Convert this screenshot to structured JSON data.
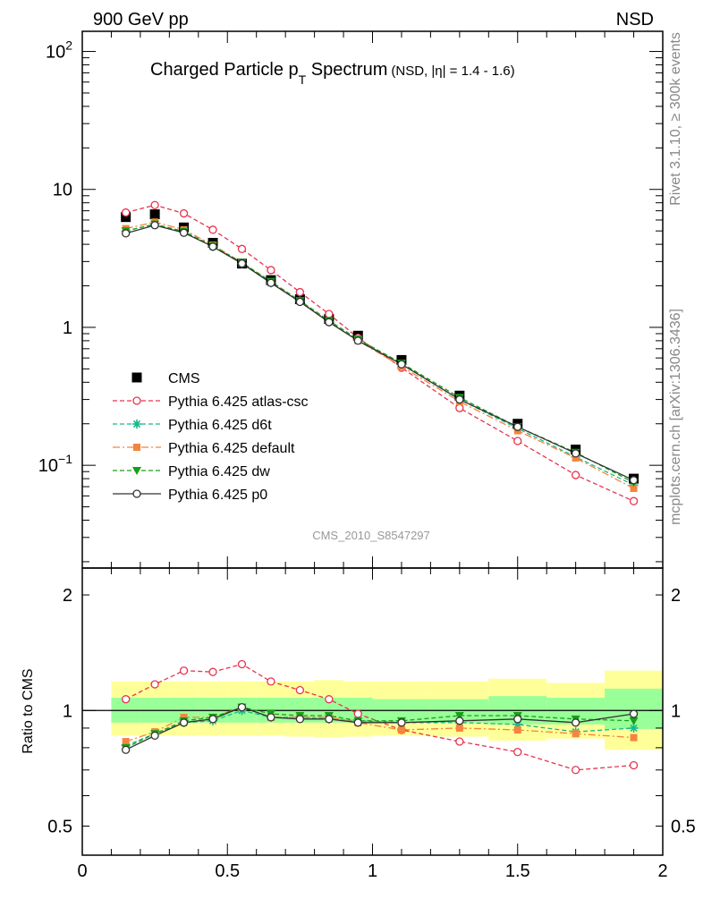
{
  "header": {
    "left": "900 GeV pp",
    "right": "NSD"
  },
  "side_labels": {
    "rivet": "Rivet 3.1.10, ≥ 300k events",
    "mcplots": "mcplots.cern.ch [arXiv:1306.3436]"
  },
  "analysis_id": "CMS_2010_S8547297",
  "colors": {
    "CMS": "#000000",
    "atlas": "#e8334f",
    "d6t": "#14b98a",
    "default": "#f5843c",
    "dw": "#16a016",
    "p0": "#333333",
    "band_outer": "#ffff99",
    "band_inner": "#99ff99"
  },
  "chart_data": [
    {
      "type": "line",
      "title": {
        "main": "Charged Particle p",
        "sub": "T",
        "main2": " Spectrum",
        "small": "(NSD, |η| = 1.4 - 1.6)"
      },
      "xlim": [
        0,
        2
      ],
      "ylim": [
        0.018,
        140
      ],
      "log_y": true,
      "yticks": [
        {
          "v": 0.1,
          "base": "10",
          "exp": "−1"
        },
        {
          "v": 1,
          "label": "1"
        },
        {
          "v": 10,
          "label": "10"
        },
        {
          "v": 100,
          "base": "10",
          "exp": "2"
        }
      ],
      "x": [
        0.15,
        0.25,
        0.35,
        0.45,
        0.55,
        0.65,
        0.75,
        0.85,
        0.95,
        1.1,
        1.3,
        1.5,
        1.7,
        1.9
      ],
      "series": [
        {
          "name": "CMS",
          "key": "CMS",
          "marker": "square",
          "dash": "",
          "values": [
            6.3,
            6.6,
            5.3,
            4.1,
            2.9,
            2.2,
            1.6,
            1.15,
            0.87,
            0.58,
            0.32,
            0.2,
            0.13,
            0.08
          ]
        },
        {
          "name": "Pythia 6.425 atlas-csc",
          "key": "atlas",
          "marker": "circle-open",
          "dash": "5,3",
          "values": [
            6.8,
            7.7,
            6.7,
            5.1,
            3.7,
            2.6,
            1.8,
            1.25,
            0.84,
            0.51,
            0.26,
            0.15,
            0.085,
            0.055
          ]
        },
        {
          "name": "Pythia 6.425 d6t",
          "key": "d6t",
          "marker": "star",
          "dash": "5,3",
          "values": [
            5.0,
            5.6,
            4.9,
            3.85,
            2.9,
            2.1,
            1.55,
            1.1,
            0.81,
            0.54,
            0.3,
            0.185,
            0.115,
            0.072
          ]
        },
        {
          "name": "Pythia 6.425 default",
          "key": "default",
          "marker": "square-small",
          "dash": "8,3,2,3",
          "values": [
            5.2,
            5.8,
            5.1,
            3.95,
            2.95,
            2.12,
            1.55,
            1.1,
            0.8,
            0.52,
            0.29,
            0.178,
            0.113,
            0.068
          ]
        },
        {
          "name": "Pythia 6.425 dw",
          "key": "dw",
          "marker": "triangle-down",
          "dash": "5,3",
          "values": [
            5.0,
            5.6,
            4.95,
            3.9,
            2.95,
            2.15,
            1.56,
            1.12,
            0.82,
            0.55,
            0.31,
            0.19,
            0.124,
            0.075
          ]
        },
        {
          "name": "Pythia 6.425 p0",
          "key": "p0",
          "marker": "circle-open",
          "dash": "",
          "values": [
            4.8,
            5.5,
            4.85,
            3.85,
            2.9,
            2.1,
            1.53,
            1.09,
            0.8,
            0.54,
            0.3,
            0.19,
            0.122,
            0.078
          ]
        }
      ],
      "legend_placement": "left"
    },
    {
      "type": "line",
      "ylabel": "Ratio to CMS",
      "xlim": [
        0,
        2
      ],
      "ylim": [
        0.42,
        2.35
      ],
      "log_y": true,
      "yticks": [
        {
          "v": 0.5,
          "label": "0.5"
        },
        {
          "v": 1,
          "label": "1"
        },
        {
          "v": 2,
          "label": "2"
        }
      ],
      "xticks": [
        {
          "v": 0,
          "label": "0"
        },
        {
          "v": 0.5,
          "label": "0.5"
        },
        {
          "v": 1,
          "label": "1"
        },
        {
          "v": 1.5,
          "label": "1.5"
        },
        {
          "v": 2,
          "label": "2"
        }
      ],
      "bands": [
        {
          "x0": 0.1,
          "x1": 0.2,
          "outer": [
            0.86,
            1.19
          ],
          "inner": [
            0.93,
            1.08
          ]
        },
        {
          "x0": 0.2,
          "x1": 0.3,
          "outer": [
            0.86,
            1.19
          ],
          "inner": [
            0.93,
            1.08
          ]
        },
        {
          "x0": 0.3,
          "x1": 0.4,
          "outer": [
            0.86,
            1.19
          ],
          "inner": [
            0.93,
            1.08
          ]
        },
        {
          "x0": 0.4,
          "x1": 0.5,
          "outer": [
            0.86,
            1.19
          ],
          "inner": [
            0.93,
            1.08
          ]
        },
        {
          "x0": 0.5,
          "x1": 0.6,
          "outer": [
            0.86,
            1.19
          ],
          "inner": [
            0.93,
            1.08
          ]
        },
        {
          "x0": 0.6,
          "x1": 0.7,
          "outer": [
            0.86,
            1.19
          ],
          "inner": [
            0.93,
            1.08
          ]
        },
        {
          "x0": 0.7,
          "x1": 0.8,
          "outer": [
            0.855,
            1.19
          ],
          "inner": [
            0.93,
            1.08
          ]
        },
        {
          "x0": 0.8,
          "x1": 0.9,
          "outer": [
            0.85,
            1.2
          ],
          "inner": [
            0.93,
            1.08
          ]
        },
        {
          "x0": 0.9,
          "x1": 1.0,
          "outer": [
            0.855,
            1.19
          ],
          "inner": [
            0.93,
            1.08
          ]
        },
        {
          "x0": 1.0,
          "x1": 1.2,
          "outer": [
            0.86,
            1.19
          ],
          "inner": [
            0.93,
            1.07
          ]
        },
        {
          "x0": 1.2,
          "x1": 1.4,
          "outer": [
            0.855,
            1.19
          ],
          "inner": [
            0.93,
            1.07
          ]
        },
        {
          "x0": 1.4,
          "x1": 1.6,
          "outer": [
            0.835,
            1.21
          ],
          "inner": [
            0.92,
            1.09
          ]
        },
        {
          "x0": 1.6,
          "x1": 1.8,
          "outer": [
            0.845,
            1.18
          ],
          "inner": [
            0.92,
            1.08
          ]
        },
        {
          "x0": 1.8,
          "x1": 2.0,
          "outer": [
            0.79,
            1.27
          ],
          "inner": [
            0.895,
            1.14
          ]
        }
      ],
      "series": [
        {
          "name": "Pythia 6.425 atlas-csc",
          "key": "atlas",
          "marker": "circle-open",
          "dash": "5,3",
          "values": [
            1.07,
            1.17,
            1.27,
            1.26,
            1.32,
            1.19,
            1.13,
            1.07,
            0.98,
            0.89,
            0.83,
            0.78,
            0.7,
            0.72
          ]
        },
        {
          "name": "Pythia 6.425 d6t",
          "key": "d6t",
          "marker": "star",
          "dash": "5,3",
          "values": [
            0.81,
            0.87,
            0.93,
            0.94,
            1.0,
            0.96,
            0.96,
            0.95,
            0.94,
            0.93,
            0.93,
            0.92,
            0.88,
            0.9
          ]
        },
        {
          "name": "Pythia 6.425 default",
          "key": "default",
          "marker": "square-small",
          "dash": "8,3,2,3",
          "values": [
            0.83,
            0.88,
            0.96,
            0.96,
            1.02,
            0.96,
            0.96,
            0.96,
            0.93,
            0.89,
            0.9,
            0.89,
            0.87,
            0.85
          ]
        },
        {
          "name": "Pythia 6.425 dw",
          "key": "dw",
          "marker": "triangle-down",
          "dash": "5,3",
          "values": [
            0.8,
            0.87,
            0.94,
            0.96,
            1.02,
            0.98,
            0.97,
            0.97,
            0.94,
            0.94,
            0.97,
            0.97,
            0.95,
            0.94
          ]
        },
        {
          "name": "Pythia 6.425 p0",
          "key": "p0",
          "marker": "circle-open",
          "dash": "",
          "values": [
            0.79,
            0.86,
            0.93,
            0.95,
            1.02,
            0.96,
            0.95,
            0.95,
            0.93,
            0.93,
            0.94,
            0.95,
            0.93,
            0.98
          ]
        }
      ]
    }
  ]
}
